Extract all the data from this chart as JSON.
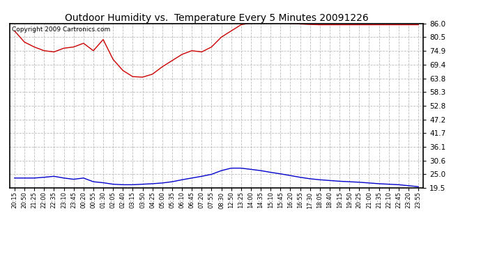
{
  "title": "Outdoor Humidity vs.  Temperature Every 5 Minutes 20091226",
  "copyright": "Copyright 2009 Cartronics.com",
  "yticks": [
    19.5,
    25.0,
    30.6,
    36.1,
    41.7,
    47.2,
    52.8,
    58.3,
    63.8,
    69.4,
    74.9,
    80.5,
    86.0
  ],
  "ymin": 19.5,
  "ymax": 86.0,
  "red_color": "#cc0000",
  "blue_color": "#0000cc",
  "bg_color": "#ffffff",
  "grid_color": "#bbbbbb",
  "xtick_labels": [
    "20:15",
    "20:50",
    "21:25",
    "22:00",
    "22:35",
    "23:10",
    "23:45",
    "00:20",
    "00:55",
    "01:30",
    "02:05",
    "02:40",
    "03:15",
    "03:50",
    "04:25",
    "05:00",
    "05:35",
    "06:10",
    "06:45",
    "07:20",
    "07:55",
    "08:30",
    "12:50",
    "13:25",
    "14:00",
    "14:35",
    "15:10",
    "15:45",
    "16:20",
    "16:55",
    "17:30",
    "18:05",
    "18:40",
    "19:15",
    "19:50",
    "20:25",
    "21:00",
    "21:35",
    "22:10",
    "22:45",
    "23:20",
    "23:55"
  ],
  "red_y": [
    83.0,
    78.5,
    76.5,
    75.0,
    74.5,
    76.0,
    76.5,
    78.0,
    75.0,
    79.5,
    71.5,
    67.0,
    64.5,
    64.3,
    65.5,
    68.5,
    71.0,
    73.5,
    75.0,
    74.5,
    76.5,
    80.5,
    83.0,
    85.5,
    86.2,
    86.5,
    86.5,
    86.4,
    86.0,
    85.8,
    85.6,
    85.5,
    85.5,
    85.5,
    85.5,
    85.5,
    85.5,
    85.5,
    85.5,
    85.5,
    85.5,
    85.5
  ],
  "blue_y": [
    23.5,
    23.5,
    23.5,
    23.8,
    24.2,
    23.5,
    23.0,
    23.5,
    22.0,
    21.6,
    21.0,
    20.8,
    20.8,
    21.0,
    21.2,
    21.5,
    22.0,
    22.8,
    23.5,
    24.2,
    25.0,
    26.5,
    27.5,
    27.5,
    27.0,
    26.5,
    25.8,
    25.2,
    24.5,
    23.8,
    23.2,
    22.8,
    22.5,
    22.2,
    22.0,
    21.8,
    21.5,
    21.2,
    21.0,
    20.8,
    20.4,
    20.0
  ]
}
